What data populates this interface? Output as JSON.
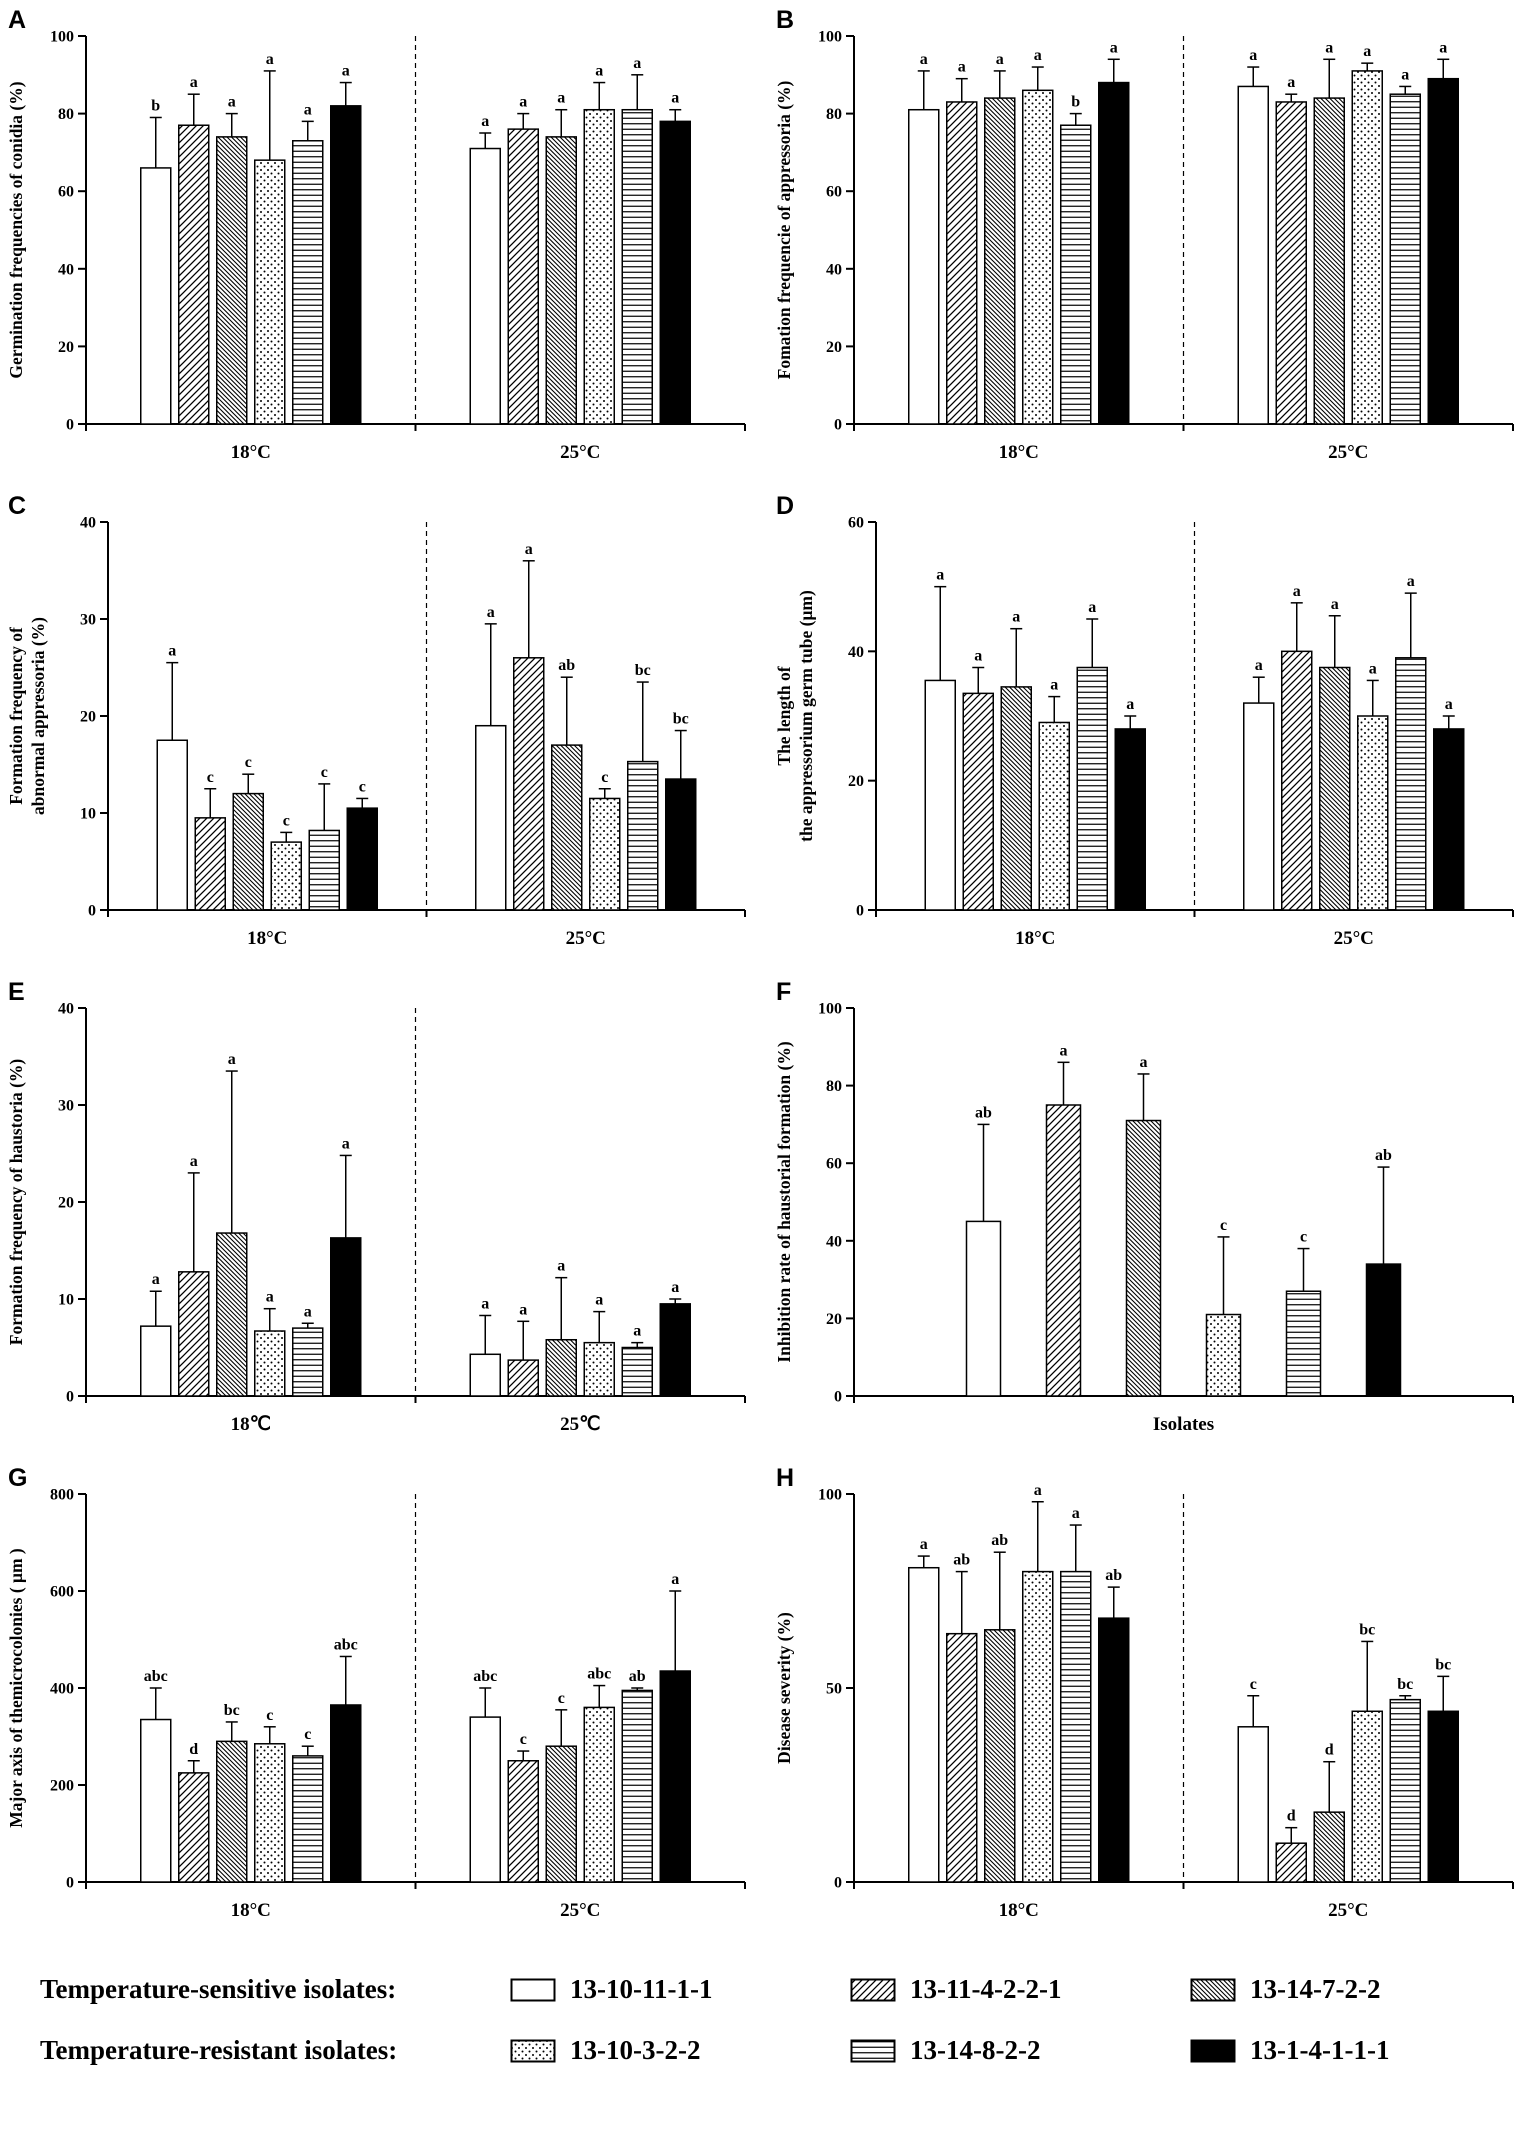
{
  "legend": {
    "rows": [
      {
        "title": "Temperature-sensitive isolates:",
        "items": [
          {
            "pattern": "white",
            "label": "13-10-11-1-1"
          },
          {
            "pattern": "diag-forward",
            "label": "13-11-4-2-2-1"
          },
          {
            "pattern": "diag-back",
            "label": "13-14-7-2-2"
          }
        ]
      },
      {
        "title": "Temperature-resistant isolates:",
        "items": [
          {
            "pattern": "dots",
            "label": "13-10-3-2-2"
          },
          {
            "pattern": "hlines",
            "label": "13-14-8-2-2"
          },
          {
            "pattern": "solid",
            "label": "13-1-4-1-1-1"
          }
        ]
      }
    ]
  },
  "isolates": [
    {
      "name": "13-10-11-1-1",
      "pattern": "white"
    },
    {
      "name": "13-11-4-2-2-1",
      "pattern": "diag-forward"
    },
    {
      "name": "13-14-7-2-2",
      "pattern": "diag-back"
    },
    {
      "name": "13-10-3-2-2",
      "pattern": "dots"
    },
    {
      "name": "13-14-8-2-2",
      "pattern": "hlines"
    },
    {
      "name": "13-1-4-1-1-1",
      "pattern": "solid"
    }
  ],
  "chart_data": [
    {
      "panel": "A",
      "type": "bar",
      "ylabel": [
        "Germination frequencies of conidia (%)"
      ],
      "ylim": [
        0,
        100
      ],
      "yticks": [
        0,
        20,
        40,
        60,
        80,
        100
      ],
      "separator": true,
      "groups": [
        {
          "label": "18°C",
          "bars": [
            {
              "v": 66,
              "e": 13,
              "sig": "b"
            },
            {
              "v": 77,
              "e": 8,
              "sig": "a"
            },
            {
              "v": 74,
              "e": 6,
              "sig": "a"
            },
            {
              "v": 68,
              "e": 23,
              "sig": "a"
            },
            {
              "v": 73,
              "e": 5,
              "sig": "a"
            },
            {
              "v": 82,
              "e": 6,
              "sig": "a"
            }
          ]
        },
        {
          "label": "25°C",
          "bars": [
            {
              "v": 71,
              "e": 4,
              "sig": "a"
            },
            {
              "v": 76,
              "e": 4,
              "sig": "a"
            },
            {
              "v": 74,
              "e": 7,
              "sig": "a"
            },
            {
              "v": 81,
              "e": 7,
              "sig": "a"
            },
            {
              "v": 81,
              "e": 9,
              "sig": "a"
            },
            {
              "v": 78,
              "e": 3,
              "sig": "a"
            }
          ]
        }
      ]
    },
    {
      "panel": "B",
      "type": "bar",
      "ylabel": [
        "Fomation frequencie of appressoria (%)"
      ],
      "ylim": [
        0,
        100
      ],
      "yticks": [
        0,
        20,
        40,
        60,
        80,
        100
      ],
      "separator": true,
      "groups": [
        {
          "label": "18°C",
          "bars": [
            {
              "v": 81,
              "e": 10,
              "sig": "a"
            },
            {
              "v": 83,
              "e": 6,
              "sig": "a"
            },
            {
              "v": 84,
              "e": 7,
              "sig": "a"
            },
            {
              "v": 86,
              "e": 6,
              "sig": "a"
            },
            {
              "v": 77,
              "e": 3,
              "sig": "b"
            },
            {
              "v": 88,
              "e": 6,
              "sig": "a"
            }
          ]
        },
        {
          "label": "25°C",
          "bars": [
            {
              "v": 87,
              "e": 5,
              "sig": "a"
            },
            {
              "v": 83,
              "e": 2,
              "sig": "a"
            },
            {
              "v": 84,
              "e": 10,
              "sig": "a"
            },
            {
              "v": 91,
              "e": 2,
              "sig": "a"
            },
            {
              "v": 85,
              "e": 2,
              "sig": "a"
            },
            {
              "v": 89,
              "e": 5,
              "sig": "a"
            }
          ]
        }
      ]
    },
    {
      "panel": "C",
      "type": "bar",
      "ylabel": [
        "Formation frequency of",
        "abnormal appressoria (%)"
      ],
      "ylim": [
        0,
        40
      ],
      "yticks": [
        0,
        10,
        20,
        30,
        40
      ],
      "separator": true,
      "groups": [
        {
          "label": "18°C",
          "bars": [
            {
              "v": 17.5,
              "e": 8,
              "sig": "a"
            },
            {
              "v": 9.5,
              "e": 3,
              "sig": "c"
            },
            {
              "v": 12,
              "e": 2,
              "sig": "c"
            },
            {
              "v": 7,
              "e": 1,
              "sig": "c"
            },
            {
              "v": 8.2,
              "e": 4.8,
              "sig": "c"
            },
            {
              "v": 10.5,
              "e": 1,
              "sig": "c"
            }
          ]
        },
        {
          "label": "25°C",
          "bars": [
            {
              "v": 19,
              "e": 10.5,
              "sig": "a"
            },
            {
              "v": 26,
              "e": 10,
              "sig": "a"
            },
            {
              "v": 17,
              "e": 7,
              "sig": "ab"
            },
            {
              "v": 11.5,
              "e": 1,
              "sig": "c"
            },
            {
              "v": 15.3,
              "e": 8.2,
              "sig": "bc"
            },
            {
              "v": 13.5,
              "e": 5,
              "sig": "bc"
            }
          ]
        }
      ]
    },
    {
      "panel": "D",
      "type": "bar",
      "ylabel": [
        "The length of",
        "the appressorium germ tube (μm)"
      ],
      "ylim": [
        0,
        60
      ],
      "yticks": [
        0,
        20,
        40,
        60
      ],
      "separator": true,
      "groups": [
        {
          "label": "18°C",
          "bars": [
            {
              "v": 35.5,
              "e": 14.5,
              "sig": "a"
            },
            {
              "v": 33.5,
              "e": 4,
              "sig": "a"
            },
            {
              "v": 34.5,
              "e": 9,
              "sig": "a"
            },
            {
              "v": 29,
              "e": 4,
              "sig": "a"
            },
            {
              "v": 37.5,
              "e": 7.5,
              "sig": "a"
            },
            {
              "v": 28,
              "e": 2,
              "sig": "a"
            }
          ]
        },
        {
          "label": "25°C",
          "bars": [
            {
              "v": 32,
              "e": 4,
              "sig": "a"
            },
            {
              "v": 40,
              "e": 7.5,
              "sig": "a"
            },
            {
              "v": 37.5,
              "e": 8,
              "sig": "a"
            },
            {
              "v": 30,
              "e": 5.5,
              "sig": "a"
            },
            {
              "v": 39,
              "e": 10,
              "sig": "a"
            },
            {
              "v": 28,
              "e": 2,
              "sig": "a"
            }
          ]
        }
      ]
    },
    {
      "panel": "E",
      "type": "bar",
      "ylabel": [
        "Formation frequency of haustoria (%)"
      ],
      "ylim": [
        0,
        40
      ],
      "yticks": [
        0,
        10,
        20,
        30,
        40
      ],
      "separator": true,
      "groups": [
        {
          "label": "18℃",
          "bars": [
            {
              "v": 7.2,
              "e": 3.6,
              "sig": "a"
            },
            {
              "v": 12.8,
              "e": 10.2,
              "sig": "a"
            },
            {
              "v": 16.8,
              "e": 16.7,
              "sig": "a"
            },
            {
              "v": 6.7,
              "e": 2.3,
              "sig": "a"
            },
            {
              "v": 7,
              "e": 0.5,
              "sig": "a"
            },
            {
              "v": 16.3,
              "e": 8.5,
              "sig": "a"
            }
          ]
        },
        {
          "label": "25℃",
          "bars": [
            {
              "v": 4.3,
              "e": 4,
              "sig": "a"
            },
            {
              "v": 3.7,
              "e": 4,
              "sig": "a"
            },
            {
              "v": 5.8,
              "e": 6.4,
              "sig": "a"
            },
            {
              "v": 5.5,
              "e": 3.2,
              "sig": "a"
            },
            {
              "v": 5,
              "e": 0.5,
              "sig": "a"
            },
            {
              "v": 9.5,
              "e": 0.5,
              "sig": "a"
            }
          ]
        }
      ]
    },
    {
      "panel": "F",
      "type": "bar",
      "ylabel": [
        "Inhibition rate of haustorial formation (%)"
      ],
      "ylim": [
        0,
        100
      ],
      "yticks": [
        0,
        20,
        40,
        60,
        80,
        100
      ],
      "separator": false,
      "groups": [
        {
          "label": "Isolates",
          "bars": [
            {
              "v": 45,
              "e": 25,
              "sig": "ab"
            },
            {
              "v": 75,
              "e": 11,
              "sig": "a"
            },
            {
              "v": 71,
              "e": 12,
              "sig": "a"
            },
            {
              "v": 21,
              "e": 20,
              "sig": "c"
            },
            {
              "v": 27,
              "e": 11,
              "sig": "c"
            },
            {
              "v": 34,
              "e": 25,
              "sig": "ab"
            }
          ]
        }
      ]
    },
    {
      "panel": "G",
      "type": "bar",
      "ylabel": [
        "Major axis of themicrocolonies ( μm )"
      ],
      "ylim": [
        0,
        800
      ],
      "yticks": [
        0,
        200,
        400,
        600,
        800
      ],
      "separator": true,
      "groups": [
        {
          "label": "18°C",
          "bars": [
            {
              "v": 335,
              "e": 65,
              "sig": "abc"
            },
            {
              "v": 225,
              "e": 25,
              "sig": "d"
            },
            {
              "v": 290,
              "e": 40,
              "sig": "bc"
            },
            {
              "v": 285,
              "e": 35,
              "sig": "c"
            },
            {
              "v": 260,
              "e": 20,
              "sig": "c"
            },
            {
              "v": 365,
              "e": 100,
              "sig": "abc"
            }
          ]
        },
        {
          "label": "25°C",
          "bars": [
            {
              "v": 340,
              "e": 60,
              "sig": "abc"
            },
            {
              "v": 250,
              "e": 20,
              "sig": "c"
            },
            {
              "v": 280,
              "e": 75,
              "sig": "c"
            },
            {
              "v": 360,
              "e": 45,
              "sig": "abc"
            },
            {
              "v": 395,
              "e": 5,
              "sig": "ab"
            },
            {
              "v": 435,
              "e": 165,
              "sig": "a"
            }
          ]
        }
      ]
    },
    {
      "panel": "H",
      "type": "bar",
      "ylabel": [
        "Disease severity (%)"
      ],
      "ylim": [
        0,
        100
      ],
      "yticks": [
        0,
        50,
        100
      ],
      "separator": true,
      "groups": [
        {
          "label": "18°C",
          "bars": [
            {
              "v": 81,
              "e": 3,
              "sig": "a"
            },
            {
              "v": 64,
              "e": 16,
              "sig": "ab"
            },
            {
              "v": 65,
              "e": 20,
              "sig": "ab"
            },
            {
              "v": 80,
              "e": 18,
              "sig": "a"
            },
            {
              "v": 80,
              "e": 12,
              "sig": "a"
            },
            {
              "v": 68,
              "e": 8,
              "sig": "ab"
            }
          ]
        },
        {
          "label": "25°C",
          "bars": [
            {
              "v": 40,
              "e": 8,
              "sig": "c"
            },
            {
              "v": 10,
              "e": 4,
              "sig": "d"
            },
            {
              "v": 18,
              "e": 13,
              "sig": "d"
            },
            {
              "v": 44,
              "e": 18,
              "sig": "bc"
            },
            {
              "v": 47,
              "e": 1,
              "sig": "bc"
            },
            {
              "v": 44,
              "e": 9,
              "sig": "bc"
            }
          ]
        }
      ]
    }
  ]
}
